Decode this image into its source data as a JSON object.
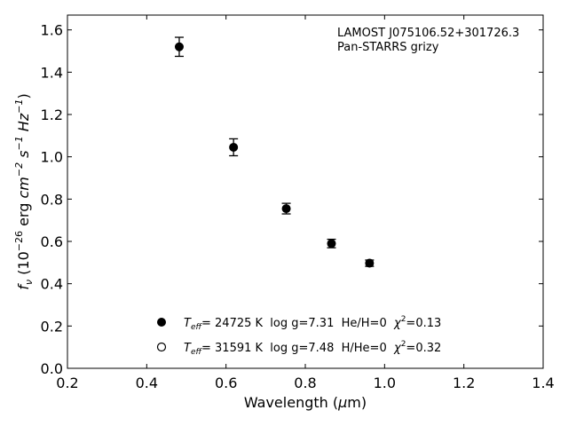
{
  "chart_data": {
    "type": "scatter",
    "annotation": [
      "LAMOST J075106.52+301726.3",
      "Pan-STARRS grizy"
    ],
    "xlabel": {
      "main": "Wavelength (",
      "mu": "μ",
      "unit": "m)"
    },
    "ylabel": {
      "f": "f",
      "nu": "ν",
      "open": " (10",
      "exp1": "−26",
      "erg": " erg ",
      "cm": "cm",
      "exp2": "−2",
      "s": " s",
      "exp3": "−1",
      "hz": " Hz",
      "exp4": "−1",
      "close": ")"
    },
    "xlim": [
      0.2,
      1.4
    ],
    "ylim": [
      0.0,
      1.67
    ],
    "x_ticks": [
      0.2,
      0.4,
      0.6,
      0.8,
      1.0,
      1.2,
      1.4
    ],
    "x_tick_labels": [
      "0.2",
      "0.4",
      "0.6",
      "0.8",
      "1.0",
      "1.2",
      "1.4"
    ],
    "y_ticks": [
      0.0,
      0.2,
      0.4,
      0.6,
      0.8,
      1.0,
      1.2,
      1.4,
      1.6
    ],
    "y_tick_labels": [
      "0.0",
      "0.2",
      "0.4",
      "0.6",
      "0.8",
      "1.0",
      "1.2",
      "1.4",
      "1.6"
    ],
    "grid": false,
    "points": [
      {
        "x": 0.482,
        "y": 1.52,
        "err": 0.045
      },
      {
        "x": 0.619,
        "y": 1.045,
        "err": 0.04
      },
      {
        "x": 0.752,
        "y": 0.755,
        "err": 0.025
      },
      {
        "x": 0.866,
        "y": 0.59,
        "err": 0.02
      },
      {
        "x": 0.962,
        "y": 0.497,
        "err": 0.015
      }
    ],
    "legend": [
      {
        "marker": "filled-circle",
        "T": "T",
        "eff": "eff",
        "teff_value": "= 24725 K",
        "logg": "  log g=7.31",
        "comp": "  He/H=0",
        "chi": "  χ",
        "chi_exp": "2",
        "chi_value": "=0.13"
      },
      {
        "marker": "open-circle",
        "T": "T",
        "eff": "eff",
        "teff_value": "= 31591 K",
        "logg": "  log g=7.48",
        "comp": "  H/He=0",
        "chi": "  χ",
        "chi_exp": "2",
        "chi_value": "=0.32"
      }
    ],
    "legend_position": "bottom-center",
    "colors": {
      "axes": "#000000",
      "marker": "#000000",
      "background": "#ffffff"
    }
  }
}
